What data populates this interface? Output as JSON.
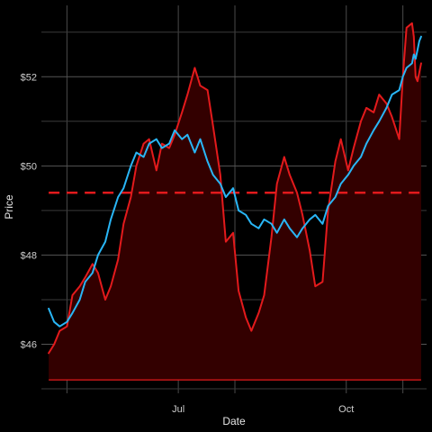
{
  "chart_data": {
    "type": "line",
    "title": "",
    "xlabel": "Date",
    "ylabel": "Price",
    "x_ticks": [
      {
        "label": "",
        "date": "2023-05-01"
      },
      {
        "label": "Jul",
        "date": "2023-07-01"
      },
      {
        "label": "",
        "date": "2023-08-01"
      },
      {
        "label": "Oct",
        "date": "2023-10-01"
      },
      {
        "label": "",
        "date": "2023-11-01"
      }
    ],
    "y_ticks": [
      {
        "label": "$46",
        "value": 46
      },
      {
        "label": "$48",
        "value": 48
      },
      {
        "label": "$50",
        "value": 50
      },
      {
        "label": "$52",
        "value": 52
      }
    ],
    "xlim": [
      "2023-04-17",
      "2023-11-14"
    ],
    "ylim": [
      44.9,
      53.6
    ],
    "grid": true,
    "reference_line": {
      "value": 49.4,
      "color": "#e31a1c",
      "style": "dashed"
    },
    "area_baseline": 45.2,
    "series": [
      {
        "name": "",
        "color": "#e31a1c",
        "fill": "#330000",
        "points": [
          [
            "2023-04-21",
            45.8
          ],
          [
            "2023-04-24",
            46.0
          ],
          [
            "2023-04-27",
            46.3
          ],
          [
            "2023-05-01",
            46.4
          ],
          [
            "2023-05-04",
            47.1
          ],
          [
            "2023-05-08",
            47.3
          ],
          [
            "2023-05-11",
            47.5
          ],
          [
            "2023-05-15",
            47.8
          ],
          [
            "2023-05-18",
            47.6
          ],
          [
            "2023-05-22",
            47.0
          ],
          [
            "2023-05-25",
            47.3
          ],
          [
            "2023-05-29",
            47.9
          ],
          [
            "2023-06-01",
            48.7
          ],
          [
            "2023-06-05",
            49.3
          ],
          [
            "2023-06-08",
            50.0
          ],
          [
            "2023-06-12",
            50.5
          ],
          [
            "2023-06-15",
            50.6
          ],
          [
            "2023-06-19",
            49.9
          ],
          [
            "2023-06-22",
            50.5
          ],
          [
            "2023-06-26",
            50.4
          ],
          [
            "2023-06-29",
            50.7
          ],
          [
            "2023-07-03",
            51.2
          ],
          [
            "2023-07-06",
            51.6
          ],
          [
            "2023-07-10",
            52.2
          ],
          [
            "2023-07-13",
            51.8
          ],
          [
            "2023-07-17",
            51.7
          ],
          [
            "2023-07-20",
            50.9
          ],
          [
            "2023-07-24",
            49.8
          ],
          [
            "2023-07-27",
            48.3
          ],
          [
            "2023-07-31",
            48.5
          ],
          [
            "2023-08-03",
            47.2
          ],
          [
            "2023-08-07",
            46.6
          ],
          [
            "2023-08-10",
            46.3
          ],
          [
            "2023-08-14",
            46.7
          ],
          [
            "2023-08-17",
            47.1
          ],
          [
            "2023-08-21",
            48.4
          ],
          [
            "2023-08-24",
            49.6
          ],
          [
            "2023-08-28",
            50.2
          ],
          [
            "2023-08-31",
            49.8
          ],
          [
            "2023-09-04",
            49.4
          ],
          [
            "2023-09-07",
            48.9
          ],
          [
            "2023-09-11",
            48.1
          ],
          [
            "2023-09-14",
            47.3
          ],
          [
            "2023-09-18",
            47.4
          ],
          [
            "2023-09-21",
            49.0
          ],
          [
            "2023-09-25",
            50.1
          ],
          [
            "2023-09-28",
            50.6
          ],
          [
            "2023-10-02",
            49.9
          ],
          [
            "2023-10-05",
            50.4
          ],
          [
            "2023-10-09",
            51.0
          ],
          [
            "2023-10-12",
            51.3
          ],
          [
            "2023-10-16",
            51.2
          ],
          [
            "2023-10-19",
            51.6
          ],
          [
            "2023-10-23",
            51.4
          ],
          [
            "2023-10-26",
            51.1
          ],
          [
            "2023-10-30",
            50.6
          ],
          [
            "2023-11-01",
            52.0
          ],
          [
            "2023-11-03",
            53.1
          ],
          [
            "2023-11-06",
            53.2
          ],
          [
            "2023-11-07",
            52.9
          ],
          [
            "2023-11-08",
            52.0
          ],
          [
            "2023-11-09",
            51.9
          ],
          [
            "2023-11-10",
            52.1
          ],
          [
            "2023-11-11",
            52.3
          ]
        ]
      },
      {
        "name": "",
        "color": "#29b6f6",
        "points": [
          [
            "2023-04-21",
            46.8
          ],
          [
            "2023-04-24",
            46.5
          ],
          [
            "2023-04-27",
            46.4
          ],
          [
            "2023-05-01",
            46.5
          ],
          [
            "2023-05-04",
            46.7
          ],
          [
            "2023-05-08",
            47.0
          ],
          [
            "2023-05-11",
            47.4
          ],
          [
            "2023-05-15",
            47.6
          ],
          [
            "2023-05-18",
            48.0
          ],
          [
            "2023-05-22",
            48.3
          ],
          [
            "2023-05-25",
            48.8
          ],
          [
            "2023-05-29",
            49.3
          ],
          [
            "2023-06-01",
            49.5
          ],
          [
            "2023-06-05",
            50.0
          ],
          [
            "2023-06-08",
            50.3
          ],
          [
            "2023-06-12",
            50.2
          ],
          [
            "2023-06-15",
            50.5
          ],
          [
            "2023-06-19",
            50.6
          ],
          [
            "2023-06-22",
            50.4
          ],
          [
            "2023-06-26",
            50.5
          ],
          [
            "2023-06-29",
            50.8
          ],
          [
            "2023-07-03",
            50.6
          ],
          [
            "2023-07-06",
            50.7
          ],
          [
            "2023-07-10",
            50.3
          ],
          [
            "2023-07-13",
            50.6
          ],
          [
            "2023-07-17",
            50.1
          ],
          [
            "2023-07-20",
            49.8
          ],
          [
            "2023-07-24",
            49.6
          ],
          [
            "2023-07-27",
            49.3
          ],
          [
            "2023-07-31",
            49.5
          ],
          [
            "2023-08-03",
            49.0
          ],
          [
            "2023-08-07",
            48.9
          ],
          [
            "2023-08-10",
            48.7
          ],
          [
            "2023-08-14",
            48.6
          ],
          [
            "2023-08-17",
            48.8
          ],
          [
            "2023-08-21",
            48.7
          ],
          [
            "2023-08-24",
            48.5
          ],
          [
            "2023-08-28",
            48.8
          ],
          [
            "2023-08-31",
            48.6
          ],
          [
            "2023-09-04",
            48.4
          ],
          [
            "2023-09-07",
            48.6
          ],
          [
            "2023-09-11",
            48.8
          ],
          [
            "2023-09-14",
            48.9
          ],
          [
            "2023-09-18",
            48.7
          ],
          [
            "2023-09-21",
            49.1
          ],
          [
            "2023-09-25",
            49.3
          ],
          [
            "2023-09-28",
            49.6
          ],
          [
            "2023-10-02",
            49.8
          ],
          [
            "2023-10-05",
            50.0
          ],
          [
            "2023-10-09",
            50.2
          ],
          [
            "2023-10-12",
            50.5
          ],
          [
            "2023-10-16",
            50.8
          ],
          [
            "2023-10-19",
            51.0
          ],
          [
            "2023-10-23",
            51.3
          ],
          [
            "2023-10-26",
            51.6
          ],
          [
            "2023-10-30",
            51.7
          ],
          [
            "2023-11-01",
            52.0
          ],
          [
            "2023-11-03",
            52.2
          ],
          [
            "2023-11-06",
            52.3
          ],
          [
            "2023-11-07",
            52.5
          ],
          [
            "2023-11-08",
            52.4
          ],
          [
            "2023-11-09",
            52.6
          ],
          [
            "2023-11-10",
            52.8
          ],
          [
            "2023-11-11",
            52.9
          ]
        ]
      }
    ]
  }
}
